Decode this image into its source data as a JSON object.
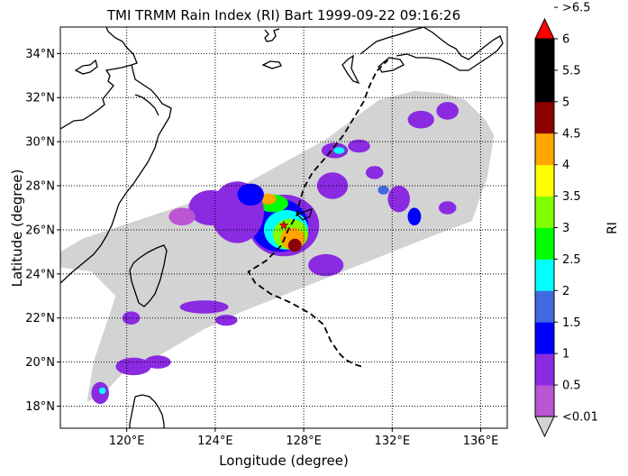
{
  "title": "TMI TRMM Rain Index (RI) Bart 1999-09-22 09:16:26",
  "xlabel": "Longitude (degree)",
  "ylabel": "Latitude (degree)",
  "colorbar": {
    "label": "RI",
    "top_label": ">6.5",
    "bottom_label": "<0.01",
    "tick_labels": [
      "0.5",
      "1",
      "1.5",
      "2",
      "2.5",
      "3",
      "3.5",
      "4",
      "4.5",
      "5",
      "5.5",
      "6"
    ],
    "colors": [
      "#ba55d3",
      "#8a2be2",
      "#0000ff",
      "#4169e1",
      "#00ffff",
      "#00ff00",
      "#7fff00",
      "#ffff00",
      "#ffa500",
      "#8b0000",
      "#000000",
      "#000000"
    ],
    "under_color": "#d3d3d3",
    "over_color": "#ff0000"
  },
  "chart_data": {
    "type": "heatmap",
    "map": "geographic",
    "xlim": [
      117,
      137.2
    ],
    "ylim": [
      17,
      35.2
    ],
    "xticks": [
      120,
      124,
      128,
      132,
      136
    ],
    "yticks": [
      18,
      20,
      22,
      24,
      26,
      28,
      30,
      32,
      34
    ],
    "xtick_labels": [
      "120°E",
      "124°E",
      "128°E",
      "132°E",
      "136°E"
    ],
    "ytick_labels": [
      "18°N",
      "20°N",
      "22°N",
      "24°N",
      "26°N",
      "28°N",
      "30°N",
      "32°N",
      "34°N"
    ],
    "grid": true,
    "grid_style": "dotted",
    "swath_polygon": [
      [
        118.0,
        25.6
      ],
      [
        121.6,
        26.8
      ],
      [
        125.2,
        28.0
      ],
      [
        129.0,
        30.1
      ],
      [
        131.4,
        31.9
      ],
      [
        133.0,
        32.3
      ],
      [
        134.3,
        32.2
      ],
      [
        135.3,
        31.9
      ],
      [
        136.2,
        31.0
      ],
      [
        136.6,
        30.3
      ],
      [
        136.3,
        28.4
      ],
      [
        135.6,
        26.4
      ],
      [
        133.5,
        25.6
      ],
      [
        131.0,
        24.6
      ],
      [
        128.0,
        23.4
      ],
      [
        125.0,
        22.2
      ],
      [
        123.5,
        21.5
      ],
      [
        121.3,
        20.2
      ],
      [
        120.0,
        19.7
      ],
      [
        119.0,
        18.6
      ],
      [
        118.2,
        18.2
      ],
      [
        118.5,
        20.0
      ],
      [
        119.0,
        21.5
      ],
      [
        119.5,
        23.0
      ],
      [
        118.4,
        24.1
      ],
      [
        117.0,
        24.3
      ],
      [
        117.0,
        25.0
      ]
    ],
    "storm_center": [
      127.1,
      26.2
    ],
    "storm_track": [
      [
        130.6,
        19.8
      ],
      [
        130.3,
        19.9
      ],
      [
        129.9,
        20.1
      ],
      [
        129.6,
        20.4
      ],
      [
        129.2,
        21.0
      ],
      [
        128.9,
        21.7
      ],
      [
        128.3,
        22.2
      ],
      [
        127.4,
        22.7
      ],
      [
        126.5,
        23.1
      ],
      [
        125.8,
        23.6
      ],
      [
        125.5,
        24.1
      ],
      [
        126.3,
        24.6
      ],
      [
        127.0,
        25.3
      ],
      [
        127.3,
        26.0
      ],
      [
        127.7,
        26.7
      ],
      [
        127.8,
        27.2
      ],
      [
        128.0,
        27.9
      ],
      [
        128.4,
        28.6
      ],
      [
        129.0,
        29.3
      ],
      [
        129.8,
        30.3
      ],
      [
        130.4,
        31.3
      ],
      [
        130.7,
        31.8
      ],
      [
        131.0,
        32.6
      ],
      [
        131.3,
        33.2
      ],
      [
        131.8,
        33.7
      ]
    ],
    "rain_cells": [
      {
        "lon": 127.1,
        "lat": 26.2,
        "rx": 1.6,
        "ry": 1.4,
        "ri": 0.7
      },
      {
        "lon": 126.9,
        "lat": 26.2,
        "rx": 1.3,
        "ry": 1.2,
        "ri": 1.2
      },
      {
        "lon": 127.2,
        "lat": 26.0,
        "rx": 1.0,
        "ry": 0.9,
        "ri": 2.2
      },
      {
        "lon": 127.4,
        "lat": 25.8,
        "rx": 0.8,
        "ry": 0.7,
        "ri": 3.2
      },
      {
        "lon": 127.5,
        "lat": 25.6,
        "rx": 0.55,
        "ry": 0.5,
        "ri": 4.0
      },
      {
        "lon": 127.6,
        "lat": 25.3,
        "rx": 0.3,
        "ry": 0.3,
        "ri": 4.6
      },
      {
        "lon": 126.6,
        "lat": 27.2,
        "rx": 0.7,
        "ry": 0.4,
        "ri": 2.8
      },
      {
        "lon": 126.4,
        "lat": 27.4,
        "rx": 0.35,
        "ry": 0.25,
        "ri": 4.2
      },
      {
        "lon": 125.0,
        "lat": 26.8,
        "rx": 1.2,
        "ry": 1.4,
        "ri": 0.6
      },
      {
        "lon": 123.8,
        "lat": 27.0,
        "rx": 1.0,
        "ry": 0.8,
        "ri": 0.6
      },
      {
        "lon": 125.6,
        "lat": 27.6,
        "rx": 0.6,
        "ry": 0.5,
        "ri": 1.2
      },
      {
        "lon": 122.5,
        "lat": 26.6,
        "rx": 0.6,
        "ry": 0.4,
        "ri": 0.3
      },
      {
        "lon": 129.4,
        "lat": 29.6,
        "rx": 0.6,
        "ry": 0.35,
        "ri": 0.7
      },
      {
        "lon": 129.6,
        "lat": 29.6,
        "rx": 0.25,
        "ry": 0.15,
        "ri": 2.2
      },
      {
        "lon": 131.2,
        "lat": 28.6,
        "rx": 0.4,
        "ry": 0.3,
        "ri": 0.6
      },
      {
        "lon": 131.6,
        "lat": 27.8,
        "rx": 0.25,
        "ry": 0.2,
        "ri": 1.6
      },
      {
        "lon": 132.3,
        "lat": 27.4,
        "rx": 0.5,
        "ry": 0.6,
        "ri": 0.6
      },
      {
        "lon": 133.0,
        "lat": 26.6,
        "rx": 0.3,
        "ry": 0.4,
        "ri": 1.2
      },
      {
        "lon": 134.5,
        "lat": 27.0,
        "rx": 0.4,
        "ry": 0.3,
        "ri": 0.6
      },
      {
        "lon": 133.3,
        "lat": 31.0,
        "rx": 0.6,
        "ry": 0.4,
        "ri": 0.6
      },
      {
        "lon": 134.5,
        "lat": 31.4,
        "rx": 0.5,
        "ry": 0.4,
        "ri": 0.6
      },
      {
        "lon": 130.5,
        "lat": 29.8,
        "rx": 0.5,
        "ry": 0.3,
        "ri": 0.6
      },
      {
        "lon": 129.3,
        "lat": 28.0,
        "rx": 0.7,
        "ry": 0.6,
        "ri": 0.6
      },
      {
        "lon": 129.0,
        "lat": 24.4,
        "rx": 0.8,
        "ry": 0.5,
        "ri": 0.6
      },
      {
        "lon": 123.5,
        "lat": 22.5,
        "rx": 1.1,
        "ry": 0.3,
        "ri": 0.6
      },
      {
        "lon": 124.5,
        "lat": 21.9,
        "rx": 0.5,
        "ry": 0.25,
        "ri": 0.6
      },
      {
        "lon": 120.3,
        "lat": 19.8,
        "rx": 0.8,
        "ry": 0.4,
        "ri": 0.6
      },
      {
        "lon": 121.4,
        "lat": 20.0,
        "rx": 0.6,
        "ry": 0.3,
        "ri": 0.6
      },
      {
        "lon": 118.8,
        "lat": 18.6,
        "rx": 0.4,
        "ry": 0.5,
        "ri": 0.9
      },
      {
        "lon": 118.9,
        "lat": 18.7,
        "rx": 0.15,
        "ry": 0.15,
        "ri": 2.2
      },
      {
        "lon": 120.2,
        "lat": 22.0,
        "rx": 0.4,
        "ry": 0.3,
        "ri": 0.6
      }
    ]
  }
}
